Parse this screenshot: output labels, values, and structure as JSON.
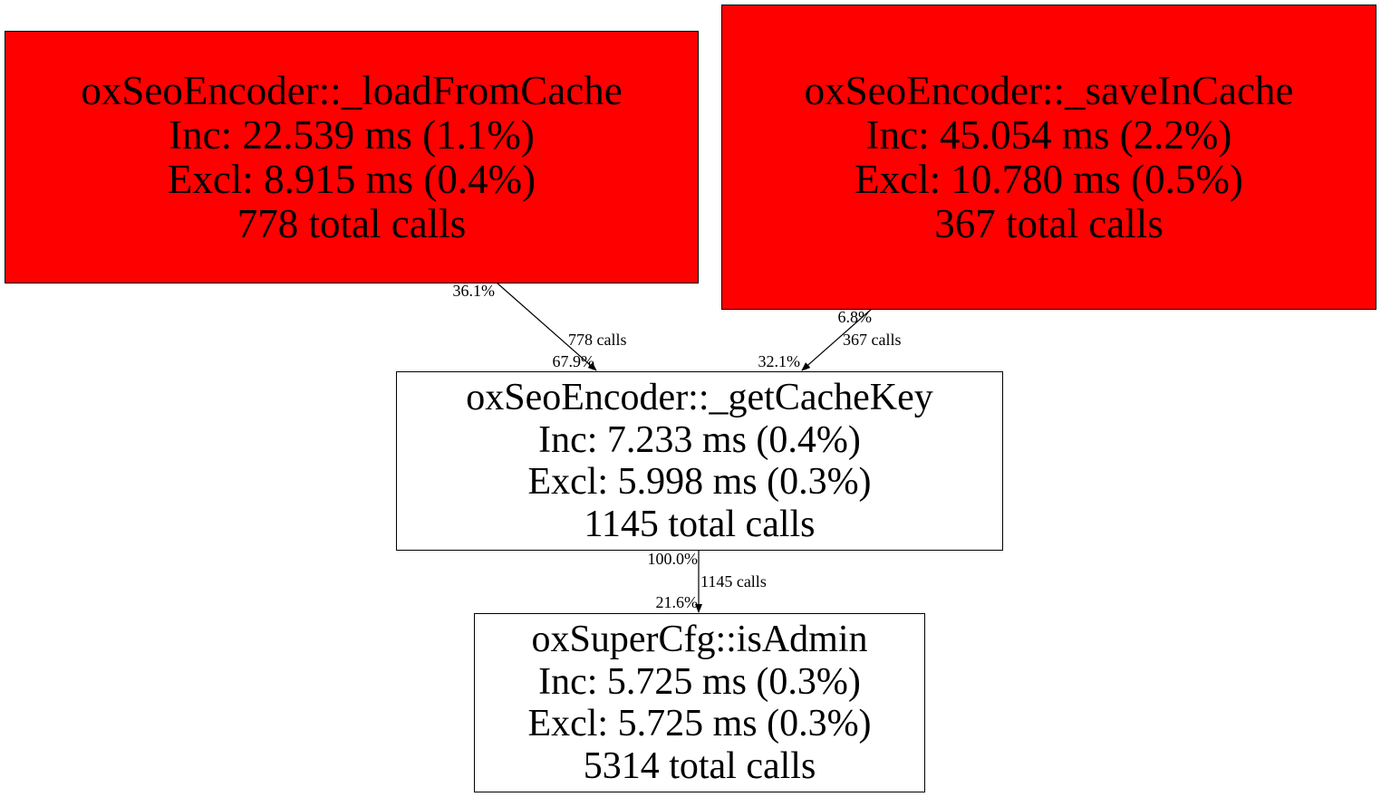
{
  "nodes": [
    {
      "name": "oxSeoEncoder::_loadFromCache",
      "inc": "Inc: 22.539 ms (1.1%)",
      "excl": "Excl: 8.915 ms (0.4%)",
      "calls": "778 total calls",
      "fill": "#ff0000"
    },
    {
      "name": "oxSeoEncoder::_saveInCache",
      "inc": "Inc: 45.054 ms (2.2%)",
      "excl": "Excl: 10.780 ms (0.5%)",
      "calls": "367 total calls",
      "fill": "#ff0000"
    },
    {
      "name": "oxSeoEncoder::_getCacheKey",
      "inc": "Inc: 7.233 ms (0.4%)",
      "excl": "Excl: 5.998 ms (0.3%)",
      "calls": "1145 total calls",
      "fill": "#ffffff"
    },
    {
      "name": "oxSuperCfg::isAdmin",
      "inc": "Inc: 5.725 ms (0.3%)",
      "excl": "Excl: 5.725 ms (0.3%)",
      "calls": "5314 total calls",
      "fill": "#ffffff"
    }
  ],
  "edges": [
    {
      "from": "oxSeoEncoder::_loadFromCache",
      "to": "oxSeoEncoder::_getCacheKey",
      "tail": "36.1%",
      "calls": "778 calls",
      "head": "67.9%"
    },
    {
      "from": "oxSeoEncoder::_saveInCache",
      "to": "oxSeoEncoder::_getCacheKey",
      "tail": "6.8%",
      "calls": "367 calls",
      "head": "32.1%"
    },
    {
      "from": "oxSeoEncoder::_getCacheKey",
      "to": "oxSuperCfg::isAdmin",
      "tail": "100.0%",
      "calls": "1145 calls",
      "head": "21.6%"
    }
  ]
}
